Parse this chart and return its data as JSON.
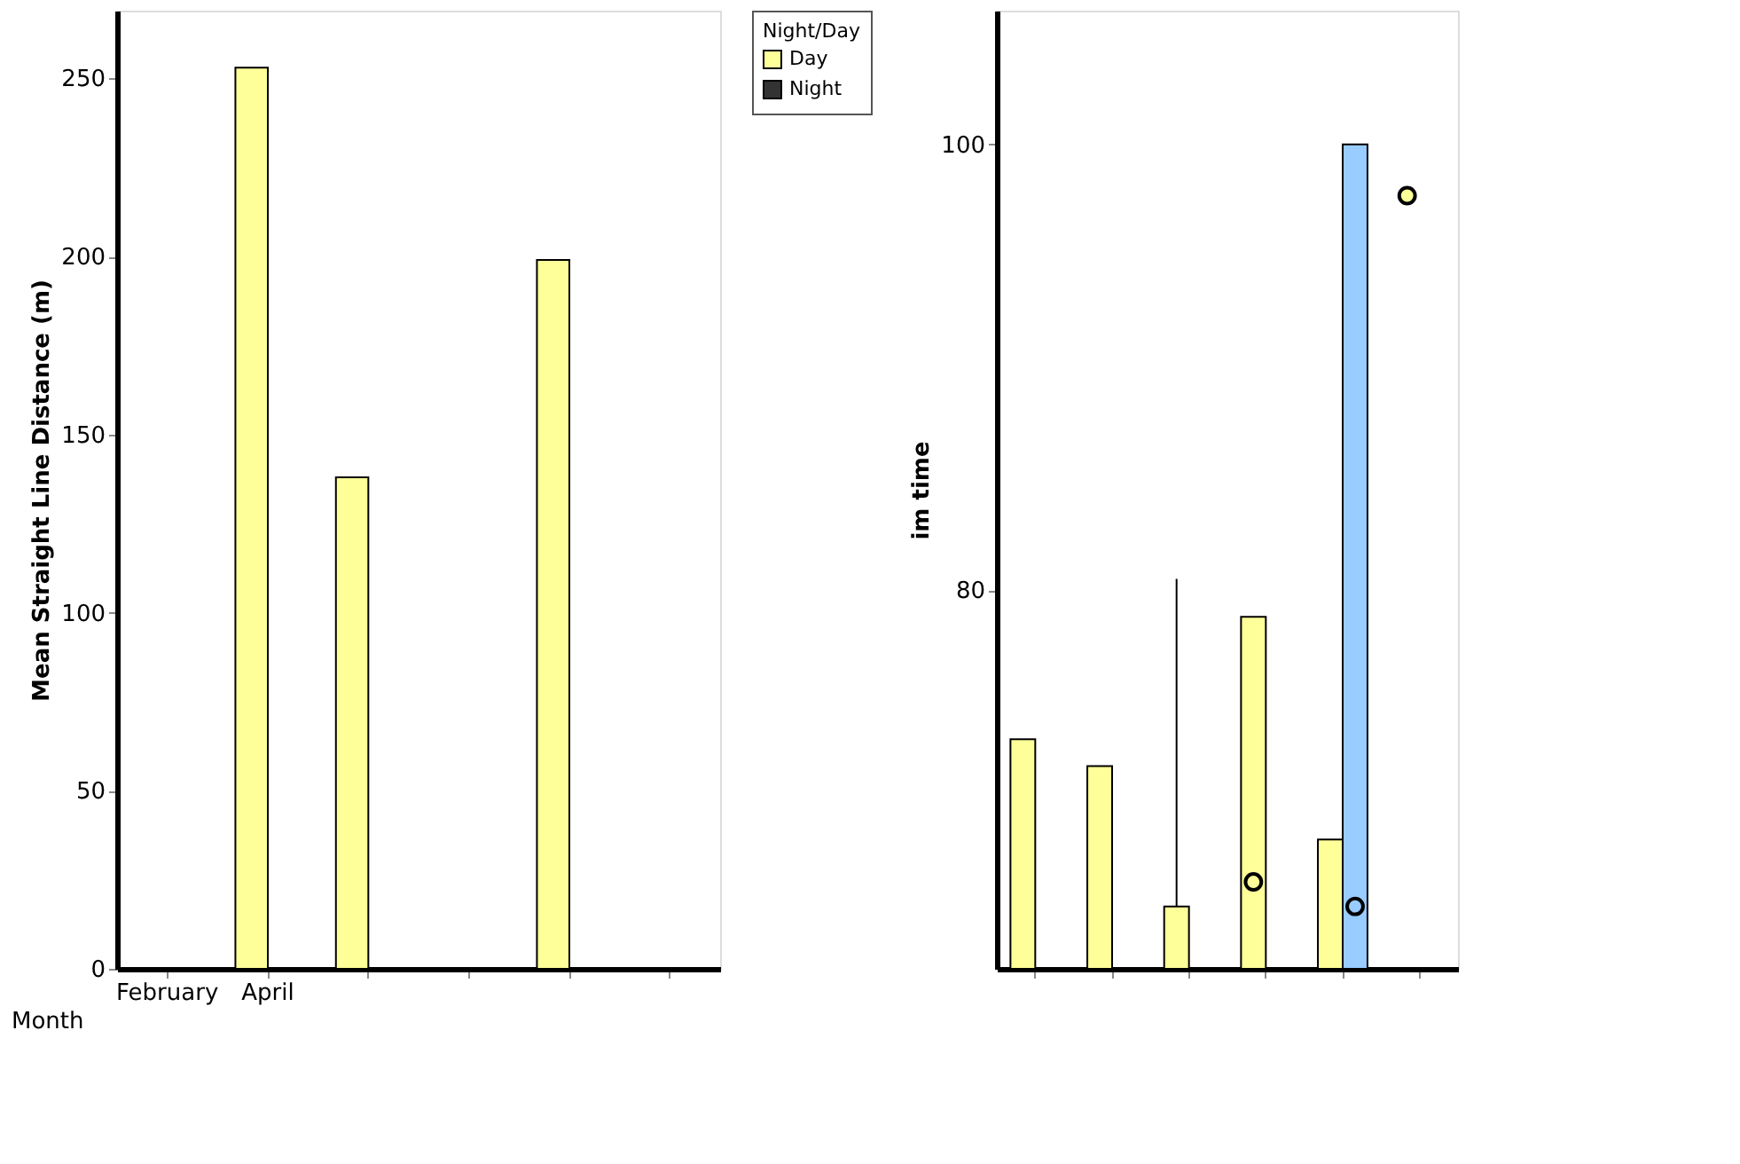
{
  "chart_data": [
    {
      "type": "bar",
      "ylabel": "Mean Straight Line Distance (m)",
      "xlabel": "Month",
      "legend_title": "Night/Day",
      "legend": "right",
      "categories": [
        "February",
        "April",
        null,
        null,
        null,
        null
      ],
      "series": [
        {
          "name": "Day",
          "color": "#ffff99",
          "values": [
            null,
            253,
            138,
            null,
            199,
            null
          ]
        },
        {
          "name": "Night",
          "color": "#333333",
          "values": [
            null,
            null,
            null,
            null,
            null,
            null
          ]
        }
      ],
      "ylim": [
        0,
        269
      ],
      "yticks": [
        0,
        50,
        100,
        150,
        200,
        250
      ],
      "grid": false
    },
    {
      "type": "bar",
      "ylabel": "im time",
      "tick_labels": "y",
      "categories": [
        null,
        null,
        null,
        null,
        null,
        null
      ],
      "series": [
        {
          "color": "#ffff99",
          "values": [
            73.3,
            72.1,
            65.8,
            78.8,
            68.8,
            null
          ],
          "errors": [
            null,
            null,
            [
              65.8,
              80.5
            ],
            null,
            null,
            null
          ]
        },
        {
          "color": "#99ccff",
          "values": [
            null,
            null,
            null,
            null,
            100,
            null
          ]
        },
        {
          "type": "scatter",
          "color": "#ffff99",
          "marker": "circle",
          "values": [
            null,
            null,
            null,
            66.9,
            null,
            97.7
          ]
        },
        {
          "type": "scatter",
          "color": "#99ccff",
          "marker": "circle",
          "values": [
            null,
            null,
            null,
            null,
            65.8,
            null
          ]
        }
      ],
      "ylim": [
        63,
        106
      ],
      "yticks": [
        80,
        100
      ],
      "grid": false
    }
  ]
}
